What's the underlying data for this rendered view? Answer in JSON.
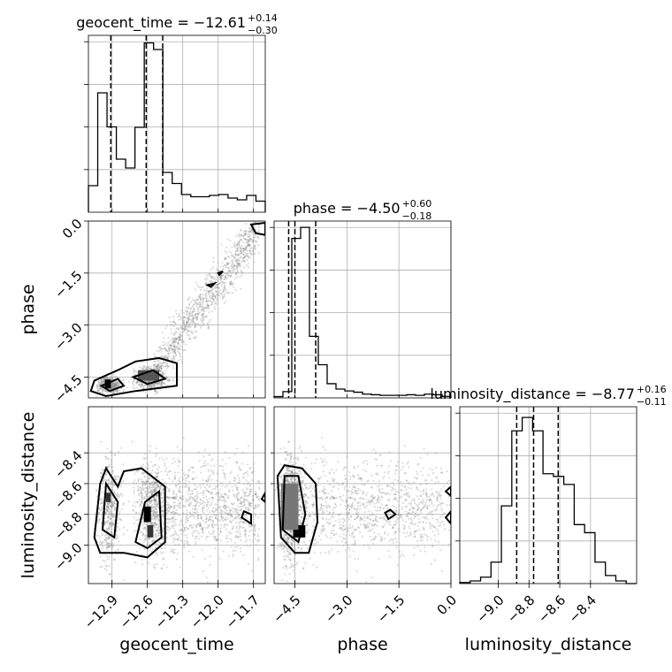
{
  "chart_data": {
    "type": "corner",
    "parameters": [
      "geocent_time",
      "phase",
      "luminosity_distance"
    ],
    "axis_labels": {
      "geocent_time": "geocent_time",
      "phase": "phase",
      "luminosity_distance": "luminosity_distance"
    },
    "ranges": {
      "geocent_time": [
        -13.1,
        -11.6
      ],
      "phase": [
        -5.1,
        0.0
      ],
      "luminosity_distance": [
        -9.25,
        -8.1
      ]
    },
    "ticks": {
      "geocent_time": [
        {
          "value": -12.9,
          "label": "−12.9"
        },
        {
          "value": -12.6,
          "label": "−12.6"
        },
        {
          "value": -12.3,
          "label": "−12.3"
        },
        {
          "value": -12.0,
          "label": "−12.0"
        },
        {
          "value": -11.7,
          "label": "−11.7"
        }
      ],
      "phase": [
        {
          "value": -4.5,
          "label": "−4.5"
        },
        {
          "value": -3.0,
          "label": "−3.0"
        },
        {
          "value": -1.5,
          "label": "−1.5"
        },
        {
          "value": 0.0,
          "label": "0.0"
        }
      ],
      "luminosity_distance": [
        {
          "value": -9.0,
          "label": "−9.0"
        },
        {
          "value": -8.8,
          "label": "−8.8"
        },
        {
          "value": -8.6,
          "label": "−8.6"
        },
        {
          "value": -8.4,
          "label": "−8.4"
        }
      ]
    },
    "titles": {
      "geocent_time": {
        "prefix": "geocent_time = −12.61",
        "sup": "+0.14",
        "sub": "−0.30"
      },
      "phase": {
        "prefix": "phase = −4.50",
        "sup": "+0.60",
        "sub": "−0.18"
      },
      "luminosity_distance": {
        "prefix": "luminosity_distance = −8.77",
        "sup": "+0.16",
        "sub": "−0.11"
      }
    },
    "quantiles": {
      "geocent_time": [
        -12.91,
        -12.61,
        -12.47
      ],
      "phase": [
        -4.68,
        -4.5,
        -3.9
      ],
      "luminosity_distance": [
        -8.88,
        -8.77,
        -8.61
      ]
    },
    "histograms": {
      "geocent_time": {
        "counts": [
          60,
          270,
          193,
          120,
          100,
          192,
          383,
          368,
          90,
          65,
          40,
          35,
          35,
          38,
          40,
          32,
          28,
          38,
          25
        ],
        "max": 400
      },
      "phase": {
        "counts": [
          4,
          20,
          505,
          540,
          195,
          105,
          45,
          28,
          22,
          18,
          12,
          10,
          8,
          8,
          8,
          10,
          8,
          12,
          10,
          5
        ],
        "max": 560
      },
      "luminosity_distance": {
        "counts": [
          2,
          5,
          12,
          40,
          145,
          285,
          310,
          285,
          205,
          200,
          185,
          110,
          95,
          40,
          15,
          5,
          0
        ],
        "max": 330
      }
    },
    "grid": true,
    "grid_color": "#b0b0b0",
    "line_color": "#000000",
    "point_color": "#8c8c8c"
  }
}
